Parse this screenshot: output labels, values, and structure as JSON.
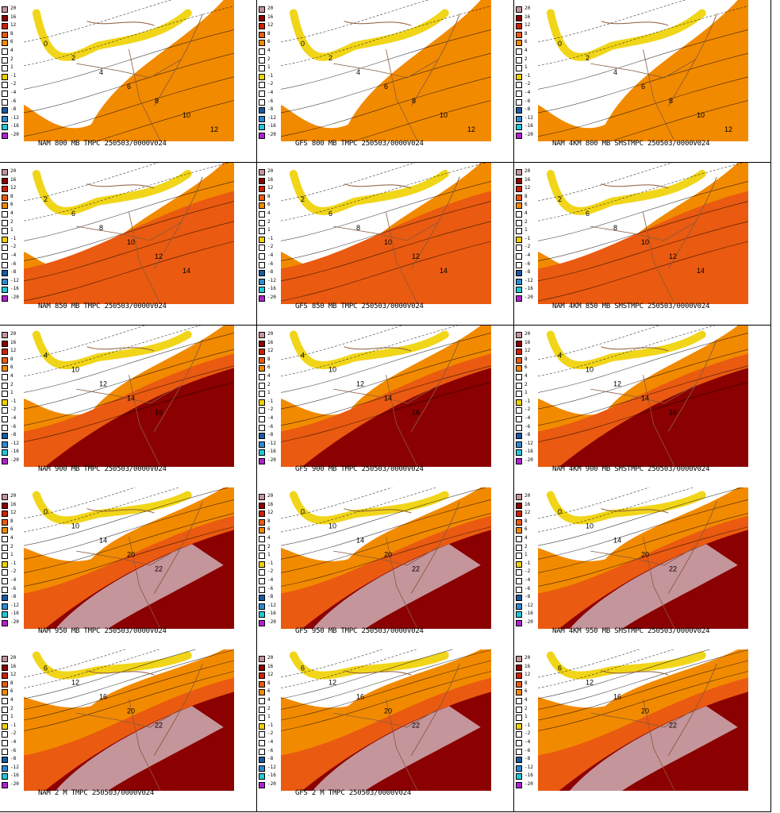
{
  "legend": {
    "levels": [
      "20",
      "16",
      "12",
      "8",
      "6",
      "4",
      "2",
      "1",
      "-1",
      "-2",
      "-4",
      "-6",
      "-8",
      "-12",
      "-16",
      "-20"
    ],
    "colors": [
      "#c4959b",
      "#8b0000",
      "#cc2200",
      "#ea5a10",
      "#f28a00",
      "#ffffff",
      "#ffffff",
      "#ffffff",
      "#f0d000",
      "#ffffff",
      "#ffffff",
      "#ffffff",
      "#1a5aa0",
      "#2e8ad0",
      "#20c8d8",
      "#b020d0"
    ]
  },
  "panels": [
    {
      "caption": "NAM 800 MB TMPC 250503/0000V024",
      "tone": 1
    },
    {
      "caption": "GFS 800 MB TMPC 250503/0000V024",
      "tone": 1
    },
    {
      "caption": "NAM 4KM 800 MB SMSTMPC 250503/0000V024",
      "tone": 1
    },
    {
      "caption": "NAM 850 MB TMPC 250503/0000V024",
      "tone": 2
    },
    {
      "caption": "GFS 850 MB TMPC 250503/0000V024",
      "tone": 2
    },
    {
      "caption": "NAM 4KM 850 MB SMSTMPC 250503/0000V024",
      "tone": 2
    },
    {
      "caption": "NAM 900 MB TMPC 250503/0000V024",
      "tone": 3
    },
    {
      "caption": "GFS 900 MB TMPC 250503/0000V024",
      "tone": 3
    },
    {
      "caption": "NAM 4KM 900 MB SMSTMPC 250503/0000V024",
      "tone": 3
    },
    {
      "caption": "NAM 950 MB TMPC 250503/0000V024",
      "tone": 4
    },
    {
      "caption": "GFS 950 MB TMPC 250503/0000V024",
      "tone": 4
    },
    {
      "caption": "NAM 4KM 950 MB SMSTMPC 250503/0000V024",
      "tone": 4
    },
    {
      "caption": "NAM 2 M TMPC 250503/0000V024",
      "tone": 5
    },
    {
      "caption": "GFS 2 M TMPC 250503/0000V024",
      "tone": 5
    },
    {
      "caption": "",
      "tone": 5
    }
  ],
  "contour_labels": {
    "row1": [
      "0",
      "2",
      "4",
      "6",
      "8",
      "10",
      "12"
    ],
    "row2": [
      "2",
      "6",
      "8",
      "10",
      "12",
      "14"
    ],
    "row3": [
      "4",
      "10",
      "12",
      "14",
      "16"
    ],
    "row4": [
      "0",
      "10",
      "14",
      "20",
      "22"
    ],
    "row5": [
      "6",
      "12",
      "16",
      "20",
      "22"
    ]
  }
}
